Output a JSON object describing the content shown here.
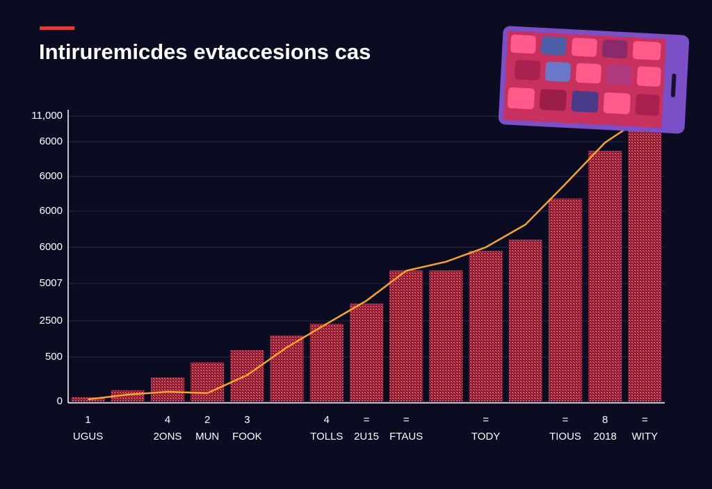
{
  "chart_data": {
    "type": "bar",
    "title": "Intiruremicdes evtaccesions cas",
    "categories": [
      "UGUS",
      null,
      "2ONS",
      "MUN",
      "FOOK",
      null,
      "TOLLS",
      "2U15",
      "FTAUS",
      null,
      "TODY",
      null,
      "TIOUS",
      "2018",
      "WITY"
    ],
    "category_numbers": [
      "1",
      null,
      "4",
      "2",
      "3",
      null,
      "4",
      "=",
      "=",
      null,
      "=",
      null,
      "=",
      "8",
      "="
    ],
    "values": [
      115,
      310,
      670,
      1080,
      1420,
      1830,
      2150,
      2710,
      3630,
      3630,
      4170,
      4480,
      5620,
      6940,
      7500
    ],
    "color": "#c0304a",
    "line_values": [
      60,
      190,
      270,
      230,
      730,
      1500,
      2150,
      2790,
      3620,
      3870,
      4270,
      4900,
      6020,
      7170,
      7900
    ],
    "line_color": "#f5a623",
    "ylim": [
      0,
      8000
    ],
    "yticks": [
      0,
      {
        "value": 1230,
        "label": "500"
      },
      {
        "value": 2230,
        "label": "2500"
      },
      {
        "value": 3270,
        "label": "5007"
      },
      {
        "value": 4270,
        "label": "6000"
      },
      {
        "value": 5270,
        "label": "6000"
      },
      {
        "value": 6230,
        "label": "6000"
      },
      {
        "value": 7190,
        "label": "6000"
      },
      {
        "value": 7900,
        "label": "11,000"
      }
    ],
    "grid": true
  }
}
